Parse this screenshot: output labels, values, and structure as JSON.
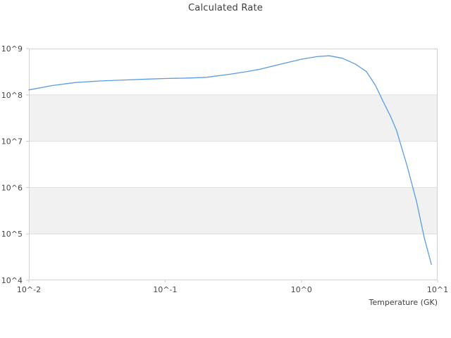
{
  "chart_data": {
    "type": "line",
    "title": "Calculated Rate",
    "xlabel": "Temperature (GK)",
    "ylabel": "",
    "x_scale": "log",
    "y_scale": "log",
    "xlim": [
      0.01,
      10
    ],
    "ylim": [
      10000.0,
      1000000000.0
    ],
    "x_tick_labels": [
      "10^-2",
      "10^-1",
      "10^0",
      "10^1"
    ],
    "x_tick_values": [
      0.01,
      0.1,
      1,
      10
    ],
    "y_tick_labels": [
      "10^9",
      "10^8",
      "10^7",
      "10^6",
      "10^5",
      "10^4"
    ],
    "y_tick_values": [
      1000000000.0,
      100000000.0,
      10000000.0,
      1000000.0,
      100000.0,
      10000.0
    ],
    "grid": "horizontal lines at each decade, alternating light-gray bands between decades",
    "legend": "none",
    "series": [
      {
        "name": "calculated-rate",
        "color": "#5b9be0",
        "x": [
          0.01,
          0.015,
          0.022,
          0.033,
          0.05,
          0.075,
          0.1,
          0.15,
          0.2,
          0.3,
          0.4,
          0.5,
          0.7,
          1.0,
          1.3,
          1.6,
          2.0,
          2.5,
          3.0,
          3.5,
          4.0,
          4.5,
          5.0,
          6.0,
          7.0,
          8.0,
          9.0
        ],
        "y": [
          128000000.0,
          160000000.0,
          185000000.0,
          200000000.0,
          210000000.0,
          220000000.0,
          226000000.0,
          232000000.0,
          240000000.0,
          280000000.0,
          320000000.0,
          360000000.0,
          460000000.0,
          590000000.0,
          670000000.0,
          700000000.0,
          620000000.0,
          460000000.0,
          320000000.0,
          160000000.0,
          70000000.0,
          35000000.0,
          17000000.0,
          2800000.0,
          500000.0,
          80000.0,
          22000.0
        ]
      }
    ],
    "colors": {
      "background": "#ffffff",
      "band": "#f1f1f1",
      "grid_line": "#dedede",
      "border": "#d2d2d2",
      "tick": "#c9c9c9",
      "text": "#454545",
      "line": "#5b9be0"
    }
  }
}
